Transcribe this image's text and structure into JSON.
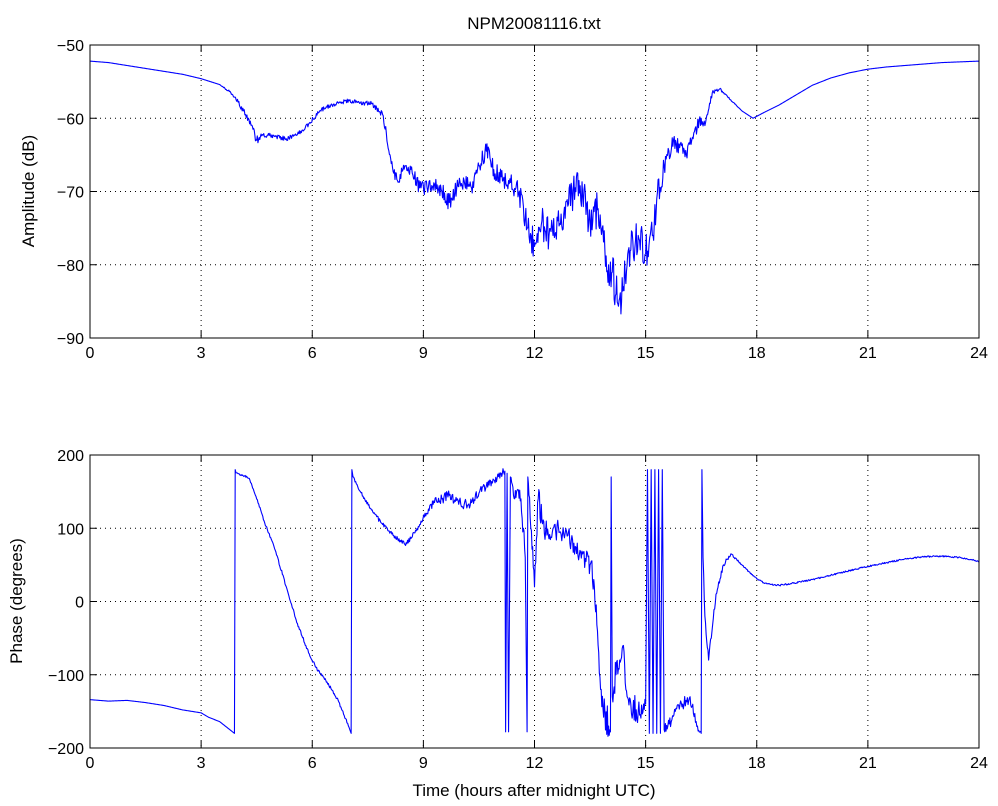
{
  "colors": {
    "line": "#0000ff",
    "axes": "#000000",
    "background": "#ffffff"
  },
  "chart_data": [
    {
      "type": "line",
      "title": "NPM20081116.txt",
      "xlabel": "",
      "ylabel": "Amplitude (dB)",
      "xlim": [
        0,
        24
      ],
      "ylim": [
        -90,
        -50
      ],
      "xticks": [
        0,
        3,
        6,
        9,
        12,
        15,
        18,
        21,
        24
      ],
      "yticks": [
        -90,
        -80,
        -70,
        -60,
        -50
      ],
      "xtick_labels": [
        "0",
        "3",
        "6",
        "9",
        "12",
        "15",
        "18",
        "21",
        "24"
      ],
      "ytick_labels": [
        "−90",
        "−80",
        "−70",
        "−60",
        "−50"
      ],
      "grid": true,
      "series": [
        {
          "x": [
            0,
            0.5,
            1,
            1.5,
            2,
            2.5,
            3,
            3.5,
            3.8,
            4,
            4.2,
            4.4,
            4.5,
            4.6,
            4.8,
            5,
            5.3,
            5.6,
            5.9,
            6.2,
            6.5,
            6.8,
            7.0,
            7.3,
            7.6,
            7.9,
            8.0,
            8.1,
            8.2,
            8.3,
            8.5,
            8.7,
            8.9,
            9.1,
            9.3,
            9.5,
            9.7,
            9.9,
            10.1,
            10.3,
            10.5,
            10.7,
            10.8,
            10.9,
            11.1,
            11.3,
            11.5,
            11.7,
            11.8,
            12.0,
            12.2,
            12.3,
            12.5,
            12.7,
            12.9,
            13.1,
            13.2,
            13.3,
            13.5,
            13.7,
            13.9,
            14.0,
            14.1,
            14.2,
            14.3,
            14.4,
            14.5,
            14.6,
            14.8,
            15.0,
            15.2,
            15.3,
            15.5,
            15.7,
            15.9,
            16.1,
            16.3,
            16.5,
            16.6,
            16.8,
            17.0,
            17.3,
            17.6,
            17.9,
            18.2,
            18.6,
            19,
            19.5,
            20,
            20.5,
            21,
            21.5,
            22,
            22.5,
            23,
            23.5,
            24
          ],
          "y": [
            -52.2,
            -52.4,
            -52.8,
            -53.2,
            -53.6,
            -54.0,
            -54.6,
            -55.4,
            -56.5,
            -57.8,
            -59.5,
            -61.5,
            -63.0,
            -62.5,
            -62.3,
            -62.5,
            -62.8,
            -62.2,
            -60.8,
            -59.0,
            -58.2,
            -57.8,
            -57.6,
            -57.9,
            -58.0,
            -59.5,
            -62.0,
            -65.0,
            -67.5,
            -68.5,
            -66.5,
            -67.5,
            -69.5,
            -69.5,
            -69.0,
            -70.0,
            -71.5,
            -69.5,
            -68.5,
            -69.5,
            -66.5,
            -64.5,
            -65.5,
            -67.0,
            -68.0,
            -68.5,
            -69.5,
            -72.0,
            -75.0,
            -77.5,
            -74.0,
            -75.5,
            -76.0,
            -74.5,
            -72.0,
            -69.5,
            -68.5,
            -70.5,
            -74.0,
            -72.5,
            -78.0,
            -80.0,
            -81.0,
            -84.0,
            -84.5,
            -83.0,
            -80.0,
            -78.0,
            -76.0,
            -78.5,
            -76.0,
            -71.0,
            -66.5,
            -64.0,
            -63.5,
            -65.0,
            -62.0,
            -60.0,
            -61.0,
            -56.5,
            -56.0,
            -57.5,
            -59.0,
            -60.0,
            -59.2,
            -58.2,
            -57.0,
            -55.5,
            -54.5,
            -53.8,
            -53.3,
            -53.0,
            -52.8,
            -52.6,
            -52.4,
            -52.3,
            -52.2
          ],
          "noise": [
            0,
            0,
            0,
            0,
            0,
            0,
            0,
            0,
            0.2,
            0.3,
            0.4,
            0.6,
            0.6,
            0.4,
            0.3,
            0.3,
            0.3,
            0.3,
            0.3,
            0.3,
            0.3,
            0.3,
            0.3,
            0.3,
            0.3,
            0.4,
            0.6,
            0.8,
            0.8,
            0.8,
            0.8,
            0.9,
            1.0,
            1.0,
            1.0,
            1.1,
            1.2,
            1.1,
            1.1,
            1.1,
            1.2,
            1.2,
            1.2,
            1.3,
            1.4,
            1.4,
            1.6,
            1.8,
            2.0,
            2.2,
            2.2,
            2.2,
            2.4,
            2.4,
            2.4,
            2.4,
            2.4,
            2.4,
            2.6,
            2.6,
            2.8,
            2.8,
            3.0,
            3.0,
            3.0,
            3.0,
            3.0,
            2.8,
            2.6,
            2.6,
            2.2,
            2.0,
            1.8,
            1.6,
            1.4,
            1.2,
            1.0,
            0.8,
            0.5,
            0.3,
            0.2,
            0.1,
            0,
            0,
            0,
            0,
            0,
            0,
            0,
            0,
            0,
            0,
            0,
            0,
            0,
            0,
            0
          ]
        }
      ]
    },
    {
      "type": "line",
      "title": "",
      "xlabel": "Time (hours after midnight UTC)",
      "ylabel": "Phase (degrees)",
      "xlim": [
        0,
        24
      ],
      "ylim": [
        -200,
        200
      ],
      "xticks": [
        0,
        3,
        6,
        9,
        12,
        15,
        18,
        21,
        24
      ],
      "yticks": [
        -200,
        -100,
        0,
        100,
        200
      ],
      "xtick_labels": [
        "0",
        "3",
        "6",
        "9",
        "12",
        "15",
        "18",
        "21",
        "24"
      ],
      "ytick_labels": [
        "−200",
        "−100",
        "0",
        "100",
        "200"
      ],
      "grid": true,
      "series": [
        {
          "x": [
            0,
            0.5,
            1,
            1.5,
            2,
            2.5,
            3,
            3.2,
            3.5,
            3.9,
            3.92,
            3.94,
            4.1,
            4.3,
            4.5,
            4.7,
            5.0,
            5.3,
            5.6,
            5.9,
            6.1,
            6.4,
            6.7,
            6.9,
            7.05,
            7.07,
            7.1,
            7.3,
            7.6,
            7.9,
            8.2,
            8.5,
            8.7,
            8.9,
            9.1,
            9.3,
            9.5,
            9.7,
            9.9,
            10.1,
            10.3,
            10.5,
            10.7,
            10.9,
            11.1,
            11.2,
            11.22,
            11.26,
            11.3,
            11.35,
            11.4,
            11.5,
            11.6,
            11.7,
            11.75,
            11.8,
            11.82,
            11.85,
            11.9,
            12.0,
            12.1,
            12.2,
            12.3,
            12.5,
            12.7,
            12.9,
            13.1,
            13.3,
            13.5,
            13.6,
            13.7,
            13.8,
            13.9,
            14.0,
            14.05,
            14.07,
            14.1,
            14.2,
            14.3,
            14.4,
            14.5,
            14.6,
            14.8,
            15.0,
            15.05,
            15.1,
            15.15,
            15.2,
            15.25,
            15.3,
            15.35,
            15.4,
            15.45,
            15.5,
            15.6,
            15.8,
            16.0,
            16.2,
            16.4,
            16.5,
            16.52,
            16.55,
            16.6,
            16.7,
            16.9,
            17.1,
            17.3,
            17.6,
            17.9,
            18.2,
            18.6,
            19,
            19.5,
            20,
            20.5,
            21,
            21.5,
            22,
            22.5,
            23,
            23.5,
            24
          ],
          "y": [
            -134,
            -136,
            -135,
            -138,
            -142,
            -148,
            -152,
            -158,
            -164,
            -180,
            180,
            176,
            172,
            168,
            140,
            110,
            70,
            20,
            -30,
            -70,
            -90,
            -110,
            -135,
            -160,
            -180,
            180,
            170,
            150,
            125,
            105,
            90,
            78,
            88,
            105,
            120,
            135,
            140,
            145,
            138,
            132,
            135,
            148,
            158,
            166,
            175,
            178,
            -178,
            175,
            -178,
            170,
            160,
            142,
            152,
            100,
            60,
            -178,
            170,
            145,
            100,
            20,
            140,
            110,
            95,
            100,
            95,
            90,
            75,
            65,
            50,
            30,
            -40,
            -120,
            -150,
            -170,
            -178,
            170,
            -130,
            -100,
            -80,
            -60,
            -130,
            -140,
            -150,
            -140,
            180,
            -180,
            180,
            -180,
            180,
            -180,
            180,
            -180,
            180,
            -175,
            -170,
            -150,
            -140,
            -130,
            -170,
            -180,
            180,
            60,
            -20,
            -80,
            10,
            50,
            65,
            50,
            35,
            25,
            22,
            25,
            30,
            36,
            42,
            48,
            53,
            58,
            61,
            62,
            60,
            55
          ],
          "noise": [
            0,
            0,
            0,
            0,
            0,
            0,
            0,
            0,
            0,
            0,
            0,
            0,
            2,
            2,
            2,
            2,
            2,
            2,
            2,
            2,
            2,
            2,
            2,
            2,
            0,
            0,
            2,
            2,
            2,
            3,
            3,
            3,
            4,
            5,
            6,
            7,
            7,
            7,
            7,
            7,
            7,
            7,
            7,
            6,
            6,
            6,
            0,
            0,
            0,
            0,
            12,
            14,
            16,
            18,
            0,
            0,
            0,
            14,
            16,
            18,
            20,
            18,
            16,
            14,
            14,
            14,
            14,
            14,
            16,
            18,
            20,
            22,
            24,
            24,
            0,
            0,
            22,
            24,
            24,
            22,
            22,
            20,
            18,
            8,
            0,
            0,
            0,
            0,
            0,
            0,
            0,
            0,
            0,
            8,
            8,
            8,
            8,
            8,
            8,
            0,
            0,
            6,
            6,
            5,
            4,
            3,
            2,
            1,
            1,
            1,
            1,
            1,
            1,
            1,
            1,
            1,
            1,
            1,
            1,
            1,
            1,
            1
          ]
        }
      ]
    }
  ]
}
